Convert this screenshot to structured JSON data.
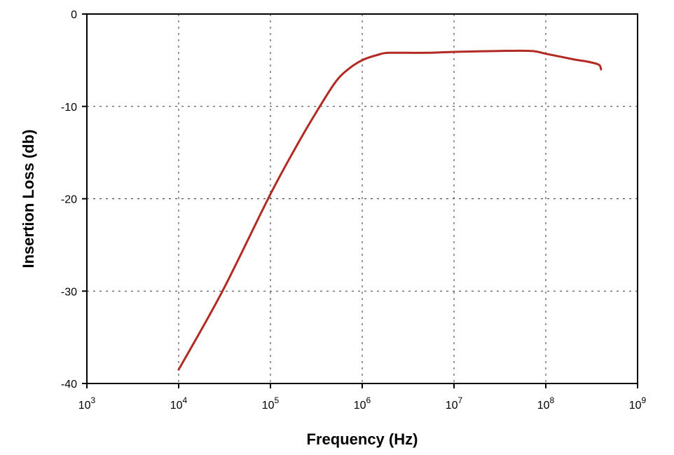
{
  "chart_data": {
    "type": "line",
    "xlabel": "Frequency (Hz)",
    "ylabel": "Insertion Loss (db)",
    "xscale": "log",
    "xlim": [
      1000,
      1000000000
    ],
    "ylim": [
      -40,
      0
    ],
    "x_ticks": [
      {
        "value": 1000,
        "base": "10",
        "exp": "3"
      },
      {
        "value": 10000,
        "base": "10",
        "exp": "4"
      },
      {
        "value": 100000,
        "base": "10",
        "exp": "5"
      },
      {
        "value": 1000000,
        "base": "10",
        "exp": "6"
      },
      {
        "value": 10000000,
        "base": "10",
        "exp": "7"
      },
      {
        "value": 100000000,
        "base": "10",
        "exp": "8"
      },
      {
        "value": 1000000000,
        "base": "10",
        "exp": "9"
      }
    ],
    "y_ticks": [
      {
        "value": 0,
        "label": "0"
      },
      {
        "value": -10,
        "label": "-10"
      },
      {
        "value": -20,
        "label": "-20"
      },
      {
        "value": -30,
        "label": "-30"
      },
      {
        "value": -40,
        "label": "-40"
      }
    ],
    "grid": "dotted",
    "series": [
      {
        "color": "#b22a22",
        "x": [
          10000,
          30000,
          100000,
          200000,
          300000,
          500000,
          700000,
          1000000,
          1500000,
          2000000,
          5000000,
          10000000,
          30000000,
          70000000,
          100000000,
          200000000,
          300000000,
          380000000,
          400000000
        ],
        "y": [
          -38.5,
          -30,
          -19.5,
          -14,
          -11,
          -7.5,
          -6,
          -5,
          -4.4,
          -4.2,
          -4.2,
          -4.1,
          -4.0,
          -4.0,
          -4.3,
          -4.9,
          -5.2,
          -5.5,
          -6.0
        ]
      }
    ]
  }
}
